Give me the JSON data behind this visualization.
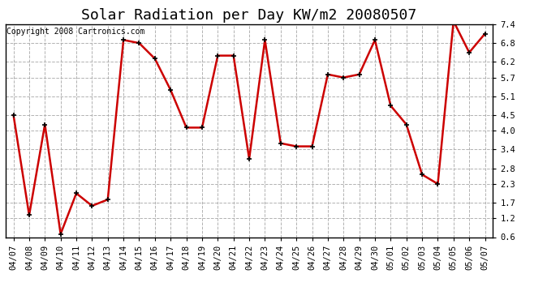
{
  "title": "Solar Radiation per Day KW/m2 20080507",
  "copyright": "Copyright 2008 Cartronics.com",
  "dates": [
    "04/07",
    "04/08",
    "04/09",
    "04/10",
    "04/11",
    "04/12",
    "04/13",
    "04/14",
    "04/15",
    "04/16",
    "04/17",
    "04/18",
    "04/19",
    "04/20",
    "04/21",
    "04/22",
    "04/23",
    "04/24",
    "04/25",
    "04/26",
    "04/27",
    "04/28",
    "04/29",
    "04/30",
    "05/01",
    "05/02",
    "05/03",
    "05/04",
    "05/05",
    "05/06",
    "05/07"
  ],
  "values": [
    4.5,
    1.3,
    4.2,
    0.7,
    2.0,
    1.6,
    1.8,
    6.9,
    6.8,
    6.3,
    5.3,
    4.1,
    4.1,
    6.4,
    6.4,
    3.1,
    6.9,
    3.6,
    3.5,
    3.5,
    5.8,
    5.7,
    5.8,
    6.9,
    4.8,
    4.2,
    2.6,
    2.3,
    7.5,
    6.5,
    7.1
  ],
  "line_color": "#cc0000",
  "marker": "+",
  "marker_size": 5,
  "marker_color": "#000000",
  "ylim": [
    0.6,
    7.4
  ],
  "yticks": [
    0.6,
    1.2,
    1.7,
    2.3,
    2.8,
    3.4,
    4.0,
    4.5,
    5.1,
    5.7,
    6.2,
    6.8,
    7.4
  ],
  "bg_color": "#ffffff",
  "plot_bg_color": "#ffffff",
  "grid_color": "#aaaaaa",
  "grid_style": "--",
  "title_fontsize": 13,
  "copyright_fontsize": 7,
  "tick_fontsize": 7.5,
  "linewidth": 1.8
}
